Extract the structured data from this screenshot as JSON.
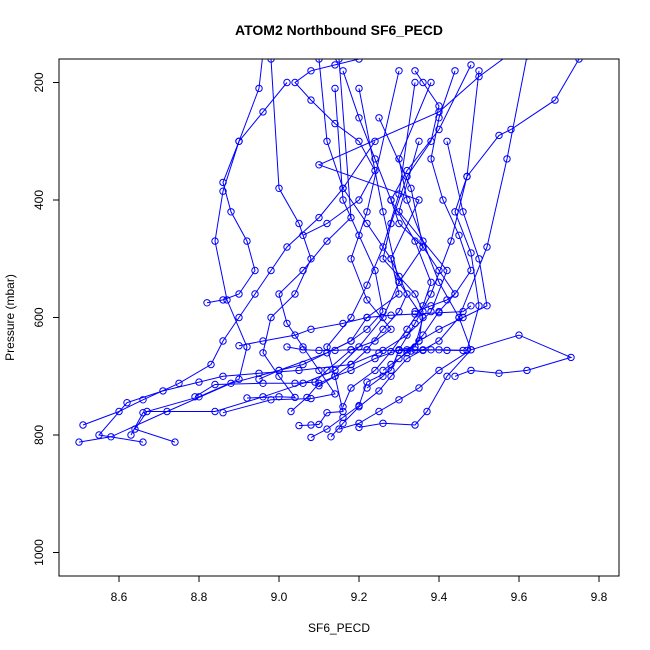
{
  "chart_data": {
    "type": "line",
    "title": "ATOM2 Northbound SF6_PECD",
    "xlabel": "SF6_PECD",
    "ylabel": "Pressure (mbar)",
    "xlim": [
      8.45,
      9.85
    ],
    "ylim": [
      1040,
      160
    ],
    "y_inverted": true,
    "x_ticks": [
      8.6,
      8.8,
      9.0,
      9.2,
      9.4,
      9.6,
      9.8
    ],
    "x_tick_labels": [
      "8.6",
      "8.8",
      "9.0",
      "9.2",
      "9.4",
      "9.6",
      "9.8"
    ],
    "y_ticks": [
      200,
      400,
      600,
      800,
      1000
    ],
    "y_tick_labels": [
      "200",
      "400",
      "600",
      "800",
      "1000"
    ],
    "grid": false,
    "legend": "none",
    "color": "#0000ff",
    "marker": "open-circle",
    "series": [
      {
        "x": [
          8.5,
          8.58,
          8.72,
          8.88,
          9.0,
          9.12,
          9.18,
          9.22,
          9.3,
          9.28,
          9.35,
          9.1,
          9.4,
          9.5,
          9.58
        ],
        "y": [
          812,
          803,
          760,
          712,
          690,
          660,
          640,
          600,
          560,
          500,
          400,
          340,
          250,
          190,
          150
        ]
      },
      {
        "x": [
          8.66,
          8.55,
          8.62,
          8.71,
          8.8,
          8.86,
          8.95,
          9.05,
          9.18,
          9.25,
          9.32,
          9.38,
          9.42,
          9.3,
          9.35
        ],
        "y": [
          812,
          800,
          745,
          725,
          710,
          700,
          695,
          690,
          680,
          660,
          630,
          590,
          520,
          420,
          300
        ]
      },
      {
        "x": [
          8.74,
          8.64,
          8.67,
          8.84,
          8.96,
          9.06,
          9.14,
          9.2,
          9.26,
          9.3,
          9.36,
          9.33,
          9.25
        ],
        "y": [
          812,
          790,
          760,
          760,
          735,
          712,
          690,
          650,
          600,
          540,
          480,
          380,
          260
        ]
      },
      {
        "x": [
          8.51,
          8.6,
          8.66,
          8.75,
          8.83,
          8.86,
          8.9,
          8.94,
          8.98,
          9.02,
          9.1,
          9.16,
          9.24
        ],
        "y": [
          783,
          760,
          740,
          712,
          680,
          640,
          600,
          560,
          520,
          480,
          430,
          380,
          300
        ]
      },
      {
        "x": [
          8.63,
          8.66,
          8.8,
          8.9,
          8.92,
          8.87,
          8.84,
          8.86,
          8.9,
          8.95,
          8.96
        ],
        "y": [
          800,
          762,
          735,
          705,
          650,
          570,
          470,
          385,
          300,
          210,
          150
        ]
      },
      {
        "x": [
          9.05,
          9.08,
          9.1,
          9.12,
          9.16,
          9.14,
          9.12,
          9.18,
          9.22,
          9.26,
          9.3,
          9.34
        ],
        "y": [
          784,
          783,
          782,
          762,
          760,
          700,
          650,
          600,
          545,
          480,
          390,
          200
        ]
      },
      {
        "x": [
          9.08,
          9.12,
          9.16,
          9.2,
          9.22,
          9.28,
          9.3,
          9.34,
          9.38,
          9.43,
          9.47,
          9.5
        ],
        "y": [
          804,
          790,
          770,
          750,
          710,
          690,
          655,
          610,
          560,
          470,
          360,
          180
        ]
      },
      {
        "x": [
          9.13,
          9.16,
          9.2,
          9.25,
          9.28,
          9.32,
          9.36,
          9.4,
          9.45,
          9.52,
          9.57,
          9.62
        ],
        "y": [
          803,
          780,
          752,
          725,
          700,
          670,
          655,
          640,
          600,
          480,
          330,
          155
        ]
      },
      {
        "x": [
          9.2,
          9.26,
          9.34,
          9.37,
          9.42,
          9.48,
          9.6,
          9.73,
          9.62,
          9.55,
          9.48,
          9.44
        ],
        "y": [
          787,
          780,
          783,
          760,
          700,
          655,
          630,
          668,
          690,
          695,
          690,
          700
        ]
      },
      {
        "x": [
          9.15,
          9.2,
          9.25,
          9.3,
          9.35,
          9.4,
          9.48,
          9.45,
          9.4,
          9.36,
          9.32,
          9.3,
          9.38
        ],
        "y": [
          790,
          780,
          760,
          740,
          720,
          690,
          655,
          600,
          540,
          470,
          400,
          330,
          200
        ]
      },
      {
        "x": [
          8.79,
          8.84,
          8.96,
          9.04,
          9.09,
          9.12,
          9.18,
          9.24,
          9.28,
          9.22,
          9.18,
          9.22,
          9.3
        ],
        "y": [
          735,
          714,
          712,
          712,
          710,
          690,
          655,
          640,
          620,
          570,
          500,
          420,
          180
        ]
      },
      {
        "x": [
          8.86,
          8.98,
          9.08,
          9.14,
          9.1,
          9.06,
          9.02,
          9.0,
          9.06,
          9.12,
          9.18,
          9.15
        ],
        "y": [
          762,
          740,
          738,
          730,
          690,
          650,
          610,
          560,
          520,
          470,
          430,
          160
        ]
      },
      {
        "x": [
          8.92,
          9.0,
          9.04,
          9.0,
          8.96,
          8.98,
          9.04,
          9.08,
          9.05,
          9.0,
          8.98
        ],
        "y": [
          737,
          735,
          736,
          700,
          660,
          600,
          560,
          500,
          440,
          380,
          160
        ]
      },
      {
        "x": [
          9.03,
          9.07,
          9.1,
          9.14,
          9.18,
          9.24,
          9.3,
          9.34,
          9.36,
          9.3,
          9.26,
          9.2
        ],
        "y": [
          760,
          736,
          712,
          700,
          690,
          670,
          655,
          650,
          600,
          540,
          420,
          210
        ]
      },
      {
        "x": [
          9.3,
          9.33,
          9.36,
          9.4,
          9.47,
          9.5,
          9.48,
          9.44,
          9.47,
          9.55,
          9.58,
          9.69,
          9.75
        ],
        "y": [
          656,
          657,
          656,
          655,
          656,
          580,
          490,
          420,
          360,
          290,
          280,
          230,
          160
        ]
      },
      {
        "x": [
          9.32,
          9.35,
          9.36,
          9.34,
          9.3,
          9.26,
          9.28,
          9.32,
          9.38,
          9.4,
          9.36,
          9.34
        ],
        "y": [
          655,
          640,
          590,
          560,
          530,
          500,
          440,
          360,
          300,
          240,
          200,
          180
        ]
      },
      {
        "x": [
          9.26,
          9.28,
          9.32,
          9.36,
          9.4,
          9.44,
          9.48,
          9.45,
          9.41,
          9.38,
          9.4,
          9.44
        ],
        "y": [
          690,
          680,
          660,
          630,
          590,
          560,
          520,
          460,
          400,
          330,
          260,
          180
        ]
      },
      {
        "x": [
          9.16,
          9.18,
          9.24,
          9.28,
          9.32,
          9.36,
          9.38,
          9.34,
          9.28,
          9.24,
          9.2,
          9.16
        ],
        "y": [
          752,
          720,
          690,
          658,
          620,
          580,
          540,
          470,
          400,
          330,
          260,
          180
        ]
      },
      {
        "x": [
          9.1,
          9.14,
          9.18,
          9.22,
          9.26,
          9.3,
          9.32,
          9.28,
          9.22,
          9.16,
          9.12,
          9.1
        ],
        "y": [
          716,
          700,
          680,
          655,
          620,
          590,
          560,
          500,
          440,
          380,
          300,
          160
        ]
      },
      {
        "x": [
          8.95,
          9.0,
          9.06,
          9.12,
          9.18,
          9.22,
          9.26,
          9.24,
          9.2,
          9.16,
          9.14
        ],
        "y": [
          705,
          690,
          680,
          660,
          640,
          620,
          590,
          520,
          460,
          400,
          210
        ]
      },
      {
        "x": [
          9.34,
          9.38,
          9.42,
          9.44,
          9.4,
          9.36,
          9.3,
          9.28,
          9.32,
          9.4,
          9.48
        ],
        "y": [
          590,
          580,
          570,
          560,
          520,
          480,
          440,
          400,
          350,
          280,
          170
        ]
      },
      {
        "x": [
          8.82,
          8.86,
          8.9,
          8.94,
          8.92,
          8.88,
          8.86,
          8.9,
          8.96,
          9.02
        ],
        "y": [
          575,
          570,
          560,
          520,
          470,
          420,
          370,
          300,
          250,
          200
        ]
      },
      {
        "x": [
          9.06,
          9.12,
          9.2,
          9.24,
          9.2,
          9.14,
          9.08,
          9.04,
          9.08,
          9.14,
          9.2
        ],
        "y": [
          460,
          440,
          400,
          350,
          300,
          270,
          230,
          200,
          180,
          170,
          160
        ]
      },
      {
        "x": [
          9.22,
          9.26,
          9.3,
          9.35,
          9.4,
          9.46,
          9.52,
          9.5,
          9.46,
          9.42
        ],
        "y": [
          720,
          700,
          670,
          640,
          620,
          600,
          580,
          500,
          420,
          300
        ]
      },
      {
        "x": [
          8.9,
          8.96,
          9.04,
          9.08,
          9.16,
          9.22,
          9.28,
          9.34,
          9.4,
          9.46,
          9.48
        ],
        "y": [
          648,
          640,
          630,
          620,
          610,
          600,
          596,
          594,
          592,
          590,
          580
        ]
      },
      {
        "x": [
          9.02,
          9.06,
          9.1,
          9.14,
          9.18,
          9.22,
          9.26,
          9.3,
          9.34,
          9.38,
          9.42,
          9.46
        ],
        "y": [
          650,
          655,
          656,
          656,
          655,
          655,
          656,
          656,
          655,
          655,
          656,
          656
        ]
      }
    ]
  }
}
